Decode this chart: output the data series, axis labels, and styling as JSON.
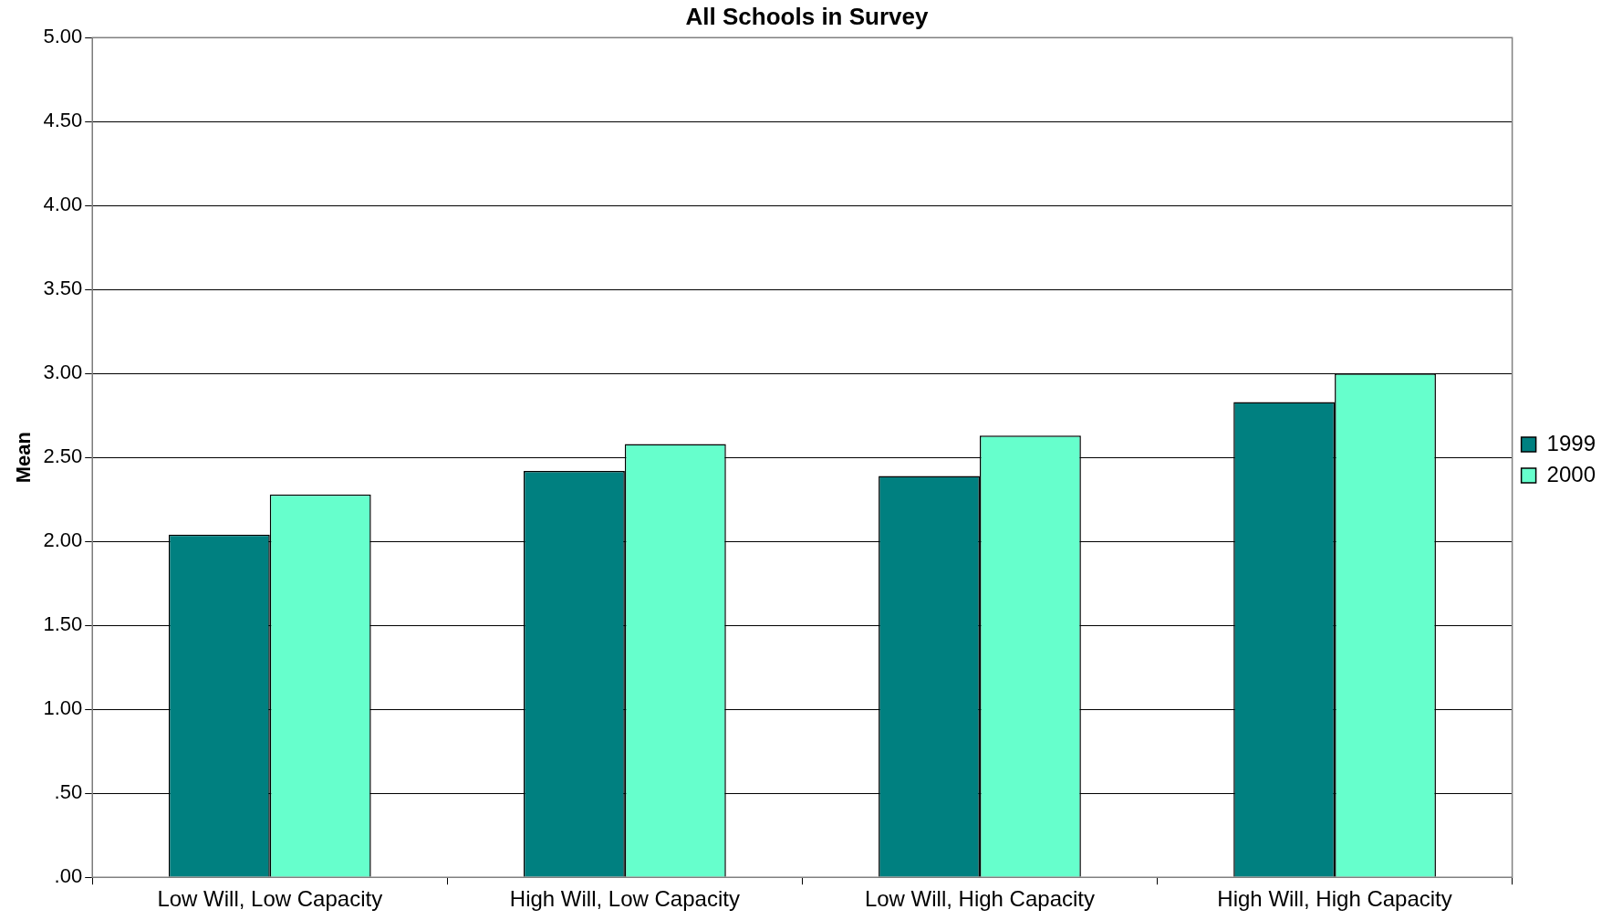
{
  "chart_data": {
    "type": "bar",
    "title": "All Schools in Survey",
    "ylabel": "Mean",
    "categories": [
      "Low Will, Low Capacity",
      "High Will, Low Capacity",
      "Low Will, High Capacity",
      "High Will, High Capacity"
    ],
    "series": [
      {
        "name": "1999",
        "color": "#008080",
        "values": [
          2.04,
          2.42,
          2.39,
          2.83
        ]
      },
      {
        "name": "2000",
        "color": "#66ffcc",
        "values": [
          2.28,
          2.58,
          2.63,
          3.0
        ]
      }
    ],
    "ylim": [
      0,
      5
    ],
    "yticks": [
      {
        "value": 0,
        "label": ".00"
      },
      {
        "value": 0.5,
        "label": ".50"
      },
      {
        "value": 1,
        "label": "1.00"
      },
      {
        "value": 1.5,
        "label": "1.50"
      },
      {
        "value": 2,
        "label": "2.00"
      },
      {
        "value": 2.5,
        "label": "2.50"
      },
      {
        "value": 3,
        "label": "3.00"
      },
      {
        "value": 3.5,
        "label": "3.50"
      },
      {
        "value": 4,
        "label": "4.00"
      },
      {
        "value": 4.5,
        "label": "4.50"
      },
      {
        "value": 5,
        "label": "5.00"
      }
    ],
    "grid": "y",
    "legend": "right"
  }
}
